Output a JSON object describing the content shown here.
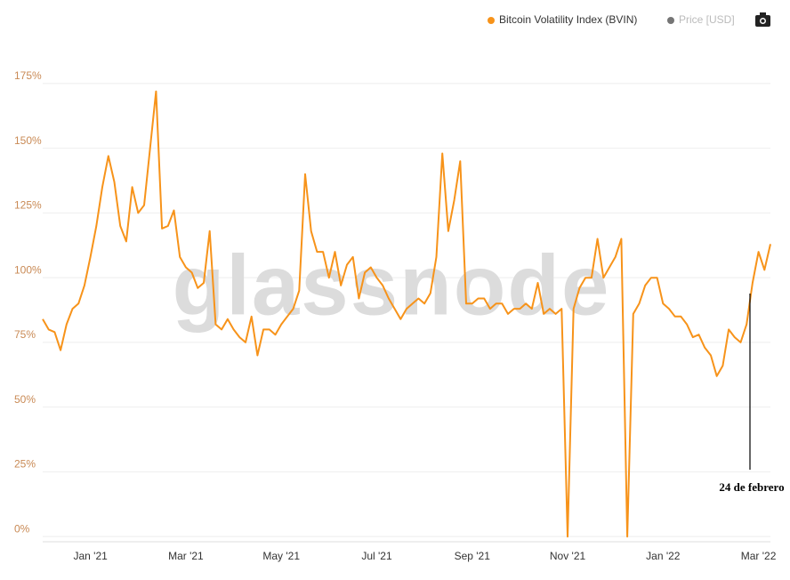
{
  "chart_data": {
    "type": "line",
    "watermark": "glassnode",
    "annotation": "24 de febrero",
    "inactive_legend": {
      "name": "Price [USD]",
      "color": "#757575"
    },
    "categories": [
      null,
      null,
      null,
      null,
      null,
      null,
      null,
      null,
      "Jan '21",
      null,
      null,
      null,
      null,
      null,
      null,
      null,
      null,
      null,
      null,
      null,
      null,
      null,
      null,
      null,
      "Mar '21",
      null,
      null,
      null,
      null,
      null,
      null,
      null,
      null,
      null,
      null,
      null,
      null,
      null,
      null,
      null,
      "May '21",
      null,
      null,
      null,
      null,
      null,
      null,
      null,
      null,
      null,
      null,
      null,
      null,
      null,
      null,
      null,
      "Jul '21",
      null,
      null,
      null,
      null,
      null,
      null,
      null,
      null,
      null,
      null,
      null,
      null,
      null,
      null,
      null,
      "Sep '21",
      null,
      null,
      null,
      null,
      null,
      null,
      null,
      null,
      null,
      null,
      null,
      null,
      null,
      null,
      null,
      "Nov '21",
      null,
      null,
      null,
      null,
      null,
      null,
      null,
      null,
      null,
      null,
      null,
      null,
      null,
      null,
      null,
      "Jan '22",
      null,
      null,
      null,
      null,
      null,
      null,
      null,
      null,
      null,
      null,
      null,
      null,
      null,
      null,
      null,
      "Mar '22",
      null,
      null
    ],
    "series": [
      {
        "name": "Bitcoin Volatility Index (BVIN)",
        "color": "#f7931a",
        "values": [
          84,
          80,
          79,
          72,
          82,
          88,
          90,
          97,
          108,
          120,
          135,
          147,
          137,
          120,
          114,
          135,
          125,
          128,
          150,
          172,
          119,
          120,
          126,
          108,
          104,
          102,
          96,
          98,
          118,
          82,
          80,
          84,
          80,
          77,
          75,
          85,
          70,
          80,
          80,
          78,
          82,
          85,
          88,
          95,
          140,
          118,
          110,
          110,
          100,
          110,
          97,
          105,
          108,
          92,
          102,
          104,
          100,
          97,
          92,
          88,
          84,
          88,
          90,
          92,
          90,
          94,
          108,
          148,
          118,
          130,
          145,
          90,
          90,
          92,
          92,
          88,
          90,
          90,
          86,
          88,
          88,
          90,
          88,
          98,
          86,
          88,
          86,
          88,
          0,
          88,
          96,
          100,
          100,
          115,
          100,
          104,
          108,
          115,
          0,
          86,
          90,
          97,
          100,
          100,
          90,
          88,
          85,
          85,
          82,
          77,
          78,
          73,
          70,
          62,
          66,
          80,
          77,
          75,
          82,
          98,
          110,
          103,
          113
        ]
      }
    ],
    "ylim": [
      -2,
      198
    ],
    "yticks": [
      {
        "value": 0,
        "label": "0%"
      },
      {
        "value": 25,
        "label": "25%"
      },
      {
        "value": 50,
        "label": "50%"
      },
      {
        "value": 75,
        "label": "75%"
      },
      {
        "value": 100,
        "label": "100%"
      },
      {
        "value": 125,
        "label": "125%"
      },
      {
        "value": 150,
        "label": "150%"
      },
      {
        "value": 175,
        "label": "175%"
      }
    ],
    "grid": true
  }
}
